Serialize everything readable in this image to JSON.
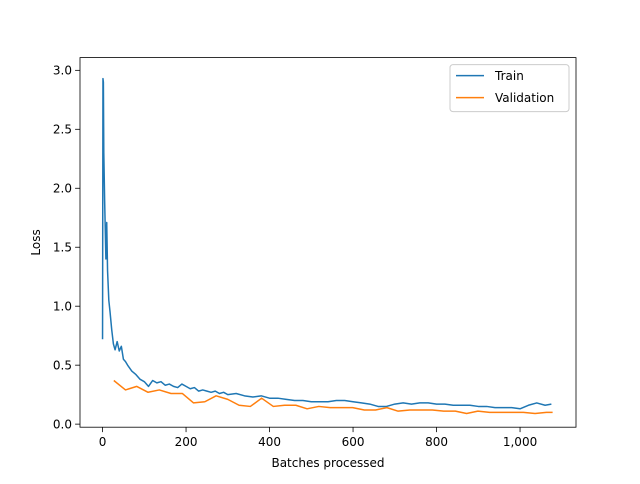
{
  "chart_data": {
    "type": "line",
    "title": "",
    "xlabel": "Batches processed",
    "ylabel": "Loss",
    "xlim": [
      -54,
      1134
    ],
    "ylim": [
      -0.026,
      3.108
    ],
    "xticks": [
      0,
      200,
      400,
      600,
      800,
      1000
    ],
    "xtick_labels": [
      "0",
      "200",
      "400",
      "600",
      "800",
      "1,000"
    ],
    "yticks": [
      0.0,
      0.5,
      1.0,
      1.5,
      2.0,
      2.5,
      3.0
    ],
    "ytick_labels": [
      "0.0",
      "0.5",
      "1.0",
      "1.5",
      "2.0",
      "2.5",
      "3.0"
    ],
    "grid": false,
    "legend_position": "top-right",
    "series": [
      {
        "name": "Train",
        "color": "#1f77b4",
        "x": [
          0,
          1,
          2,
          3,
          5,
          8,
          10,
          12,
          15,
          18,
          22,
          26,
          30,
          35,
          40,
          45,
          50,
          55,
          60,
          70,
          80,
          90,
          100,
          110,
          120,
          130,
          140,
          150,
          160,
          170,
          180,
          190,
          200,
          210,
          220,
          230,
          240,
          250,
          260,
          270,
          280,
          290,
          300,
          320,
          340,
          360,
          380,
          400,
          420,
          440,
          460,
          480,
          500,
          520,
          540,
          560,
          580,
          600,
          620,
          640,
          660,
          680,
          700,
          720,
          740,
          760,
          780,
          800,
          820,
          840,
          860,
          880,
          900,
          920,
          940,
          960,
          980,
          1000,
          1020,
          1040,
          1060,
          1075
        ],
        "values": [
          0.72,
          2.93,
          2.9,
          2.3,
          1.9,
          1.4,
          1.71,
          1.3,
          1.05,
          0.95,
          0.8,
          0.68,
          0.63,
          0.7,
          0.62,
          0.66,
          0.55,
          0.53,
          0.5,
          0.45,
          0.42,
          0.38,
          0.36,
          0.32,
          0.37,
          0.35,
          0.36,
          0.33,
          0.34,
          0.32,
          0.31,
          0.34,
          0.32,
          0.3,
          0.31,
          0.28,
          0.29,
          0.28,
          0.27,
          0.28,
          0.26,
          0.27,
          0.25,
          0.26,
          0.24,
          0.23,
          0.24,
          0.22,
          0.22,
          0.21,
          0.2,
          0.2,
          0.19,
          0.19,
          0.19,
          0.2,
          0.2,
          0.19,
          0.18,
          0.17,
          0.15,
          0.15,
          0.17,
          0.18,
          0.17,
          0.18,
          0.18,
          0.17,
          0.17,
          0.16,
          0.16,
          0.16,
          0.15,
          0.15,
          0.14,
          0.14,
          0.14,
          0.13,
          0.16,
          0.18,
          0.16,
          0.17
        ]
      },
      {
        "name": "Validation",
        "color": "#ff7f0e",
        "x": [
          27,
          55,
          82,
          109,
          136,
          164,
          191,
          218,
          245,
          272,
          300,
          327,
          354,
          381,
          409,
          436,
          463,
          490,
          518,
          545,
          572,
          599,
          627,
          654,
          681,
          708,
          736,
          763,
          790,
          817,
          845,
          872,
          899,
          927,
          954,
          981,
          1008,
          1036,
          1063,
          1078
        ],
        "values": [
          0.37,
          0.29,
          0.32,
          0.27,
          0.29,
          0.26,
          0.26,
          0.18,
          0.19,
          0.24,
          0.21,
          0.16,
          0.15,
          0.22,
          0.15,
          0.16,
          0.16,
          0.13,
          0.15,
          0.14,
          0.14,
          0.14,
          0.12,
          0.12,
          0.14,
          0.11,
          0.12,
          0.12,
          0.12,
          0.11,
          0.11,
          0.09,
          0.11,
          0.1,
          0.1,
          0.1,
          0.1,
          0.09,
          0.1,
          0.1
        ]
      }
    ]
  }
}
